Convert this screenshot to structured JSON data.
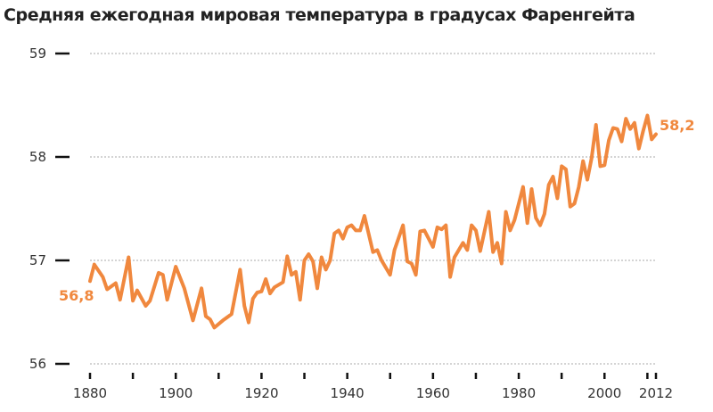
{
  "chart_data": {
    "type": "line",
    "title": "Средняя ежегодная мировая температура в градусах Фаренгейта",
    "xlabel": "",
    "ylabel": "",
    "xlim": [
      1880,
      2012
    ],
    "ylim": [
      56,
      59
    ],
    "x_ticks": [
      1880,
      1890,
      1900,
      1910,
      1920,
      1930,
      1940,
      1950,
      1960,
      1970,
      1980,
      1990,
      2000,
      2010,
      2012
    ],
    "x_tick_labels": [
      "1880",
      "1900",
      "1920",
      "1940",
      "1960",
      "1980",
      "2000",
      "2012"
    ],
    "y_tick_labels": [
      "56",
      "57",
      "58",
      "59"
    ],
    "grid": "horizontal dotted",
    "color": "#f0883e",
    "start_label": "56,8",
    "end_label": "58,2",
    "series": [
      {
        "x": [
          1880,
          1881,
          1883,
          1884,
          1886,
          1887,
          1889,
          1890,
          1891,
          1893,
          1894,
          1896,
          1897,
          1898,
          1900,
          1902,
          1904,
          1906,
          1907,
          1908,
          1909,
          1911,
          1913,
          1915,
          1916,
          1917,
          1918,
          1919,
          1920,
          1921,
          1922,
          1923,
          1925,
          1926,
          1927,
          1928,
          1929,
          1930,
          1931,
          1932,
          1933,
          1934,
          1935,
          1936,
          1937,
          1938,
          1939,
          1940,
          1941,
          1942,
          1943,
          1944,
          1946,
          1947,
          1948,
          1950,
          1951,
          1953,
          1954,
          1955,
          1956,
          1957,
          1958,
          1960,
          1961,
          1962,
          1963,
          1964,
          1965,
          1967,
          1968,
          1969,
          1970,
          1971,
          1973,
          1974,
          1975,
          1976,
          1977,
          1978,
          1979,
          1981,
          1982,
          1983,
          1984,
          1985,
          1986,
          1987,
          1988,
          1989,
          1990,
          1991,
          1992,
          1993,
          1994,
          1995,
          1996,
          1997,
          1998,
          1999,
          2000,
          2001,
          2002,
          2003,
          2004,
          2005,
          2006,
          2007,
          2008,
          2009,
          2010,
          2011,
          2012
        ],
        "y": [
          56.8,
          56.96,
          56.84,
          56.72,
          56.78,
          56.62,
          57.03,
          56.61,
          56.71,
          56.56,
          56.61,
          56.88,
          56.86,
          56.62,
          56.94,
          56.73,
          56.42,
          56.73,
          56.46,
          56.43,
          56.35,
          56.42,
          56.48,
          56.91,
          56.56,
          56.4,
          56.63,
          56.69,
          56.7,
          56.82,
          56.68,
          56.74,
          56.79,
          57.04,
          56.86,
          56.89,
          56.62,
          57.0,
          57.06,
          56.99,
          56.73,
          57.03,
          56.91,
          57.0,
          57.26,
          57.29,
          57.21,
          57.32,
          57.34,
          57.29,
          57.29,
          57.43,
          57.08,
          57.1,
          57.0,
          56.86,
          57.1,
          57.34,
          56.99,
          56.97,
          56.86,
          57.28,
          57.29,
          57.13,
          57.32,
          57.3,
          57.34,
          56.84,
          57.03,
          57.17,
          57.1,
          57.34,
          57.29,
          57.09,
          57.47,
          57.08,
          57.17,
          56.97,
          57.47,
          57.29,
          57.39,
          57.71,
          57.36,
          57.69,
          57.41,
          57.34,
          57.45,
          57.73,
          57.81,
          57.6,
          57.91,
          57.88,
          57.52,
          57.55,
          57.71,
          57.96,
          57.78,
          57.99,
          58.31,
          57.91,
          57.92,
          58.16,
          58.28,
          58.27,
          58.15,
          58.37,
          58.27,
          58.33,
          58.08,
          58.25,
          58.4,
          58.17,
          58.22
        ]
      }
    ]
  }
}
